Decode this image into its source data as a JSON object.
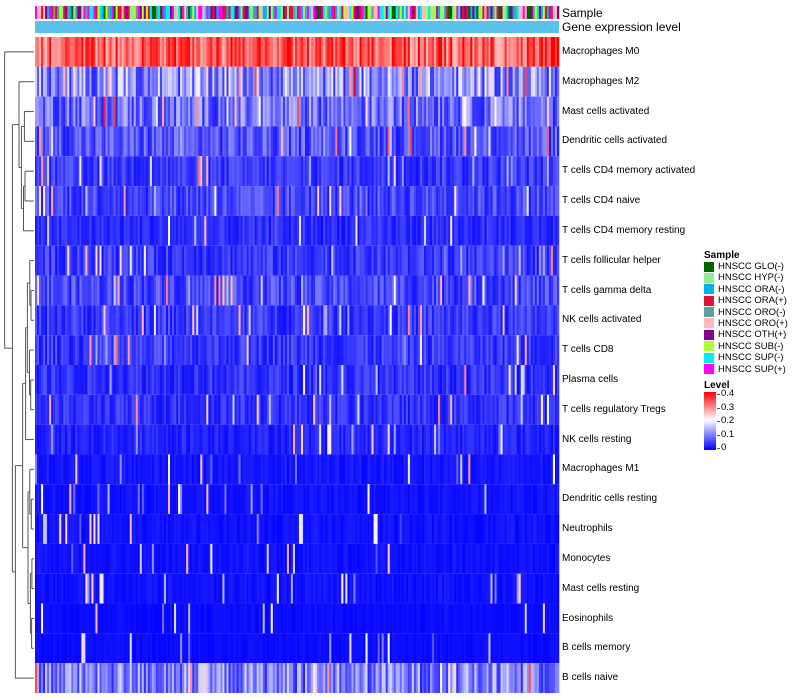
{
  "chart_data": {
    "type": "heatmap",
    "title": "",
    "annotations": [
      {
        "name": "Sample",
        "label": "Sample"
      },
      {
        "name": "Gene expression level",
        "label": "Gene expression level"
      }
    ],
    "rows": [
      {
        "label": "Macrophages M0",
        "mean": 0.33
      },
      {
        "label": "Macrophages M2",
        "mean": 0.1
      },
      {
        "label": "Mast cells activated",
        "mean": 0.08
      },
      {
        "label": "Dendritic cells activated",
        "mean": 0.06
      },
      {
        "label": "T cells CD4 memory activated",
        "mean": 0.04
      },
      {
        "label": "T cells CD4 naive",
        "mean": 0.05
      },
      {
        "label": "T cells CD4 memory resting",
        "mean": 0.03
      },
      {
        "label": "T cells follicular helper",
        "mean": 0.04
      },
      {
        "label": "T cells gamma delta",
        "mean": 0.05
      },
      {
        "label": "NK cells activated",
        "mean": 0.04
      },
      {
        "label": "T cells CD8",
        "mean": 0.04
      },
      {
        "label": "Plasma cells",
        "mean": 0.035
      },
      {
        "label": "T cells regulatory  Tregs",
        "mean": 0.035
      },
      {
        "label": "NK cells resting",
        "mean": 0.025
      },
      {
        "label": "Macrophages M1",
        "mean": 0.015
      },
      {
        "label": "Dendritic cells resting",
        "mean": 0.012
      },
      {
        "label": "Neutrophils",
        "mean": 0.012
      },
      {
        "label": "Monocytes",
        "mean": 0.012
      },
      {
        "label": "Mast cells resting",
        "mean": 0.012
      },
      {
        "label": "Eosinophils",
        "mean": 0.008
      },
      {
        "label": "B cells memory",
        "mean": 0.008
      },
      {
        "label": "B cells naive",
        "mean": 0.09
      }
    ],
    "n_samples": 260,
    "sample_legend": {
      "title": "Sample",
      "items": [
        {
          "label": "HNSCC GLO(-)",
          "color": "#006400"
        },
        {
          "label": "HNSCC HYP(-)",
          "color": "#90ee90"
        },
        {
          "label": "HNSCC ORA(-)",
          "color": "#00b2ee"
        },
        {
          "label": "HNSCC ORA(+)",
          "color": "#dc143c"
        },
        {
          "label": "HNSCC ORO(-)",
          "color": "#5f9ea0"
        },
        {
          "label": "HNSCC ORO(+)",
          "color": "#ffb6c1"
        },
        {
          "label": "HNSCC OTH(+)",
          "color": "#8b008b"
        },
        {
          "label": "HNSCC SUB(-)",
          "color": "#adff2f"
        },
        {
          "label": "HNSCC SUP(-)",
          "color": "#00eeee"
        },
        {
          "label": "HNSCC SUP(+)",
          "color": "#ff00ff"
        }
      ]
    },
    "level_legend": {
      "title": "Level",
      "ticks": [
        "0.4",
        "0.3",
        "0.2",
        "0.1",
        "0"
      ],
      "range": [
        0,
        0.4
      ]
    },
    "expression_level_color": "#5bc0eb",
    "colors": {
      "low": "#0000ff",
      "mid": "#ffffff",
      "high": "#ff0000"
    }
  }
}
